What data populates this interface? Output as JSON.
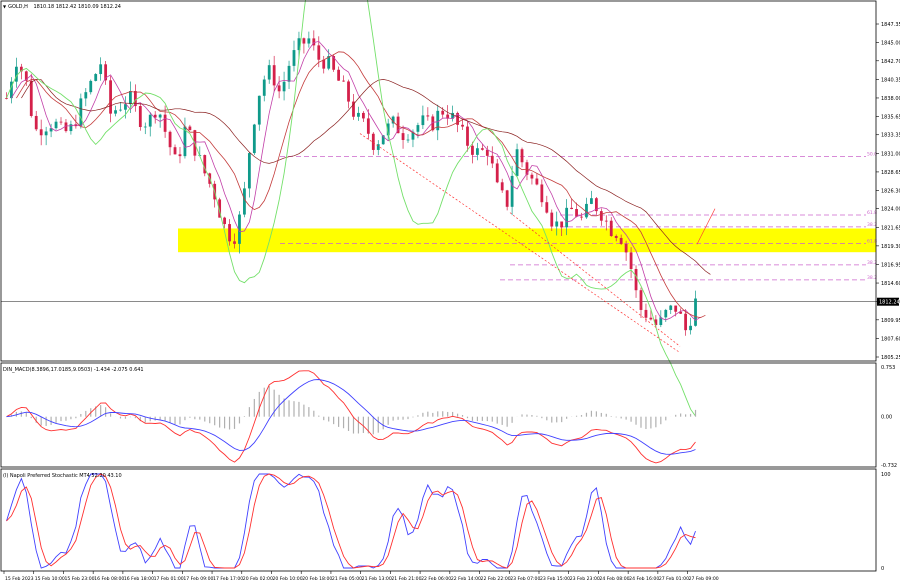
{
  "header": {
    "dropdown_glyph": "▼",
    "symbol": "GOLD,H",
    "ohlc": "1810.18 1812.42 1810.09 1812.24"
  },
  "macd_header": "DIN_MACD(8.3896,17.0185,9.0503) -1.434 -2.075 0.641",
  "stoch_header": "(l) Napoli Preferred Stochastic MT4 52.20 43.10",
  "colors": {
    "bull": "#0f9a8a",
    "bear": "#d4204a",
    "magenta_ma": "#c23fa8",
    "red_ma": "#c43c3c",
    "darkred_ma": "#8a2020",
    "green_band": "#74e06a",
    "yellow_zone": "#ffff00",
    "fib_line": "#cc66cc",
    "trend": "#ff3333",
    "macd_blue": "#4040ff",
    "macd_red": "#ff3030",
    "hist": "#b0b0b0"
  },
  "chart_data": [
    {
      "type": "candlestick",
      "ylim": [
        1805.25,
        1849.5
      ],
      "y_ticks": [
        "1847.35",
        "1845.00",
        "1842.70",
        "1840.35",
        "1838.00",
        "1835.65",
        "1833.35",
        "1831.00",
        "1828.65",
        "1826.30",
        "1824.00",
        "1821.65",
        "1819.30",
        "1816.95",
        "1814.60",
        "1812.24",
        "1809.95",
        "1807.60",
        "1805.25"
      ],
      "current_price": "1812.24",
      "x_labels": [
        "15 Feb 2023",
        "15 Feb 10:00",
        "15 Feb 23:00",
        "16 Feb 08:00",
        "16 Feb 18:00",
        "17 Feb 01:00",
        "17 Feb 09:00",
        "17 Feb 17:00",
        "20 Feb 02:00",
        "20 Feb 10:00",
        "20 Feb 18:00",
        "21 Feb 05:00",
        "21 Feb 13:00",
        "21 Feb 21:00",
        "22 Feb 06:00",
        "22 Feb 14:00",
        "22 Feb 22:00",
        "23 Feb 07:00",
        "23 Feb 15:00",
        "23 Feb 23:00",
        "24 Feb 08:00",
        "24 Feb 16:00",
        "27 Feb 01:00",
        "27 Feb 09:00"
      ],
      "close_path": [
        1838.0,
        1843.0,
        1840.5,
        1833.8,
        1834.5,
        1835.0,
        1833.5,
        1834.2,
        1837.5,
        1840.0,
        1842.5,
        1836.0,
        1837.0,
        1838.2,
        1835.5,
        1834.8,
        1837.2,
        1833.0,
        1829.5,
        1834.5,
        1831.5,
        1828.5,
        1826.0,
        1822.0,
        1820.0,
        1824.0,
        1834.0,
        1840.0,
        1841.5,
        1838.5,
        1842.5,
        1844.5,
        1845.5,
        1843.0,
        1842.5,
        1840.5,
        1838.5,
        1835.5,
        1834.5,
        1832.0,
        1833.8,
        1834.8,
        1833.5,
        1834.0,
        1835.0,
        1834.5,
        1836.5,
        1836.0,
        1834.0,
        1832.0,
        1831.0,
        1831.5,
        1826.5,
        1824.5,
        1831.5,
        1829.0,
        1827.0,
        1825.5,
        1821.8,
        1822.5,
        1824.0,
        1822.5,
        1825.0,
        1823.5,
        1821.5,
        1820.8,
        1817.5,
        1811.5,
        1810.5,
        1809.0,
        1811.0,
        1811.5,
        1808.5,
        1812.2
      ],
      "fib_levels": [
        {
          "label": "50.0",
          "price": 1830.6
        },
        {
          "label": "61.8",
          "price": 1823.2
        },
        {
          "label": "38.2",
          "price": 1821.7
        },
        {
          "label": "61.8",
          "price": 1819.6
        },
        {
          "label": "38.2",
          "price": 1816.9
        },
        {
          "label": "38.2",
          "price": 1815.0
        }
      ],
      "zone": {
        "from": 1818.5,
        "to": 1821.5
      }
    },
    {
      "type": "macd",
      "ylim": [
        -0.732,
        0.753
      ],
      "y_ticks": [
        "0.753",
        "0.00",
        "-0.732"
      ]
    },
    {
      "type": "stochastic",
      "ylim": [
        0,
        100
      ],
      "y_ticks": [
        "100",
        "0"
      ]
    }
  ]
}
